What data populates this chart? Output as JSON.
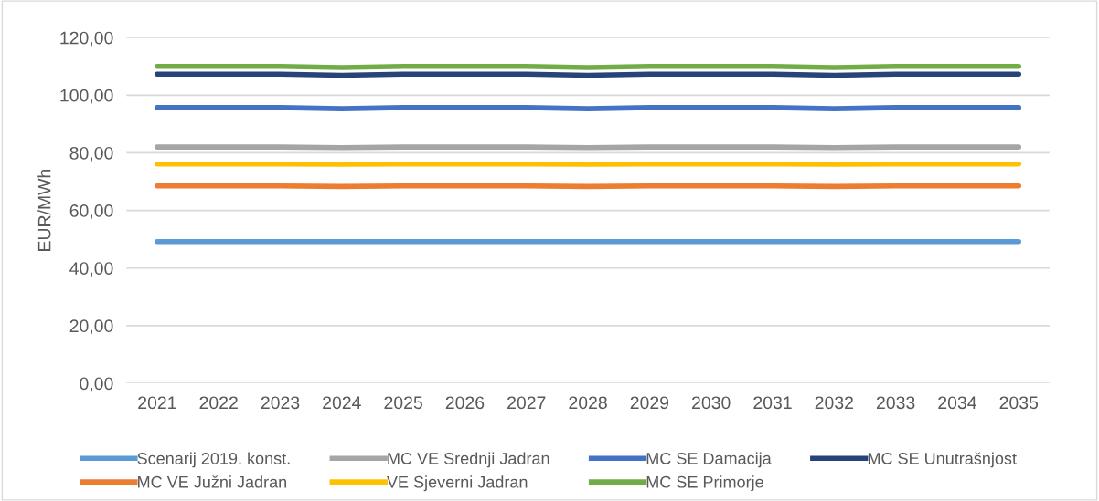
{
  "chart_data": {
    "type": "line",
    "ylabel": "EUR/MWh",
    "categories": [
      "2021",
      "2022",
      "2023",
      "2024",
      "2025",
      "2026",
      "2027",
      "2028",
      "2029",
      "2030",
      "2031",
      "2032",
      "2033",
      "2034",
      "2035"
    ],
    "ylim": [
      0,
      120
    ],
    "yticks": [
      {
        "value": 0,
        "label": "0,00"
      },
      {
        "value": 20,
        "label": "20,00"
      },
      {
        "value": 40,
        "label": "40,00"
      },
      {
        "value": 60,
        "label": "60,00"
      },
      {
        "value": 80,
        "label": "80,00"
      },
      {
        "value": 100,
        "label": "100,00"
      },
      {
        "value": 120,
        "label": "120,00"
      }
    ],
    "grid": "y",
    "legend": "bottom",
    "marker": "none",
    "line_style": "solid",
    "series": [
      {
        "name": "Scenarij 2019. konst.",
        "color": "#5b9bd5",
        "values": [
          49.2,
          49.2,
          49.2,
          49.2,
          49.2,
          49.2,
          49.2,
          49.2,
          49.2,
          49.2,
          49.2,
          49.2,
          49.2,
          49.2,
          49.2
        ]
      },
      {
        "name": "MC VE Južni Jadran",
        "color": "#ed7d31",
        "values": [
          68.5,
          68.5,
          68.5,
          68.3,
          68.5,
          68.5,
          68.5,
          68.3,
          68.5,
          68.5,
          68.5,
          68.3,
          68.5,
          68.5,
          68.5
        ]
      },
      {
        "name": "MC VE Srednji Jadran",
        "color": "#a5a5a5",
        "values": [
          82.0,
          82.0,
          82.0,
          81.8,
          82.0,
          82.0,
          82.0,
          81.8,
          82.0,
          82.0,
          82.0,
          81.8,
          82.0,
          82.0,
          82.0
        ]
      },
      {
        "name": "VE Sjeverni Jadran",
        "color": "#ffc000",
        "values": [
          76.1,
          76.1,
          76.1,
          76.0,
          76.1,
          76.1,
          76.1,
          76.0,
          76.1,
          76.1,
          76.1,
          76.0,
          76.1,
          76.1,
          76.1
        ]
      },
      {
        "name": "MC SE Damacija",
        "color": "#4472c4",
        "values": [
          95.7,
          95.7,
          95.7,
          95.3,
          95.7,
          95.7,
          95.7,
          95.3,
          95.7,
          95.7,
          95.7,
          95.3,
          95.7,
          95.7,
          95.7
        ]
      },
      {
        "name": "MC SE Primorje",
        "color": "#70ad47",
        "values": [
          110.0,
          110.0,
          110.0,
          109.6,
          110.0,
          110.0,
          110.0,
          109.6,
          110.0,
          110.0,
          110.0,
          109.6,
          110.0,
          110.0,
          110.0
        ]
      },
      {
        "name": "MC SE Unutrašnjost",
        "color": "#264478",
        "values": [
          107.3,
          107.3,
          107.3,
          106.9,
          107.3,
          107.3,
          107.3,
          106.9,
          107.3,
          107.3,
          107.3,
          106.9,
          107.3,
          107.3,
          107.3
        ]
      }
    ]
  }
}
